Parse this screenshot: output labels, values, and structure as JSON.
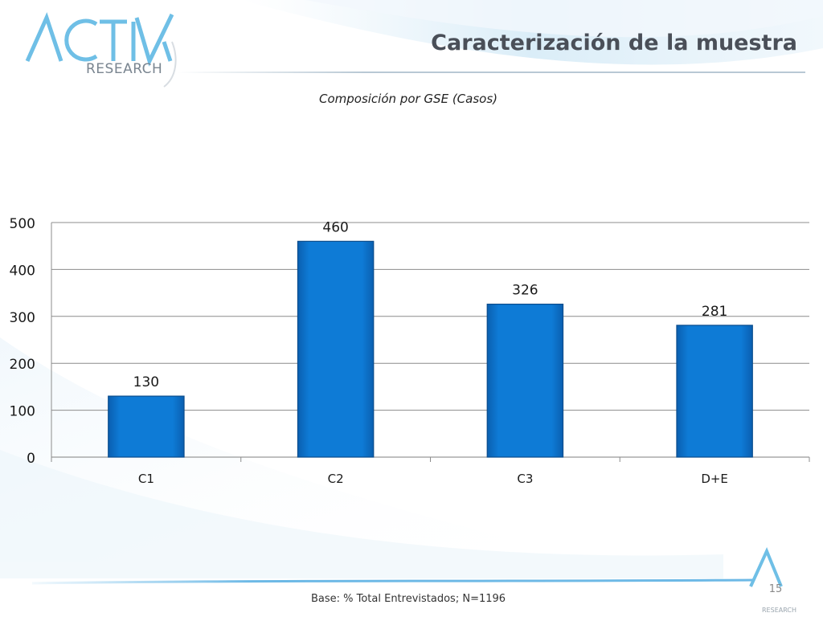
{
  "slide": {
    "title": "Caracterización de la muestra",
    "logo_text": "RESEARCH",
    "footer_note": "Base: % Total Entrevistados; N=1196",
    "page_number": "15"
  },
  "colors": {
    "bar": "#0b74d1",
    "bar_edge": "#0a4c8c",
    "title": "#4a4f58",
    "accent_swoosh": "#7fc4ec"
  },
  "chart_data": {
    "type": "bar",
    "title": "Composición por GSE (Casos)",
    "categories": [
      "C1",
      "C2",
      "C3",
      "D+E"
    ],
    "values": [
      130,
      460,
      326,
      281
    ],
    "data_labels": [
      "130",
      "460",
      "326",
      "281"
    ],
    "ylim": [
      0,
      500
    ],
    "yticks": [
      0,
      100,
      200,
      300,
      400,
      500
    ],
    "ytick_labels": [
      "0",
      "100",
      "200",
      "300",
      "400",
      "500"
    ],
    "xlabel": "",
    "ylabel": "",
    "grid": true,
    "legend": "none"
  }
}
